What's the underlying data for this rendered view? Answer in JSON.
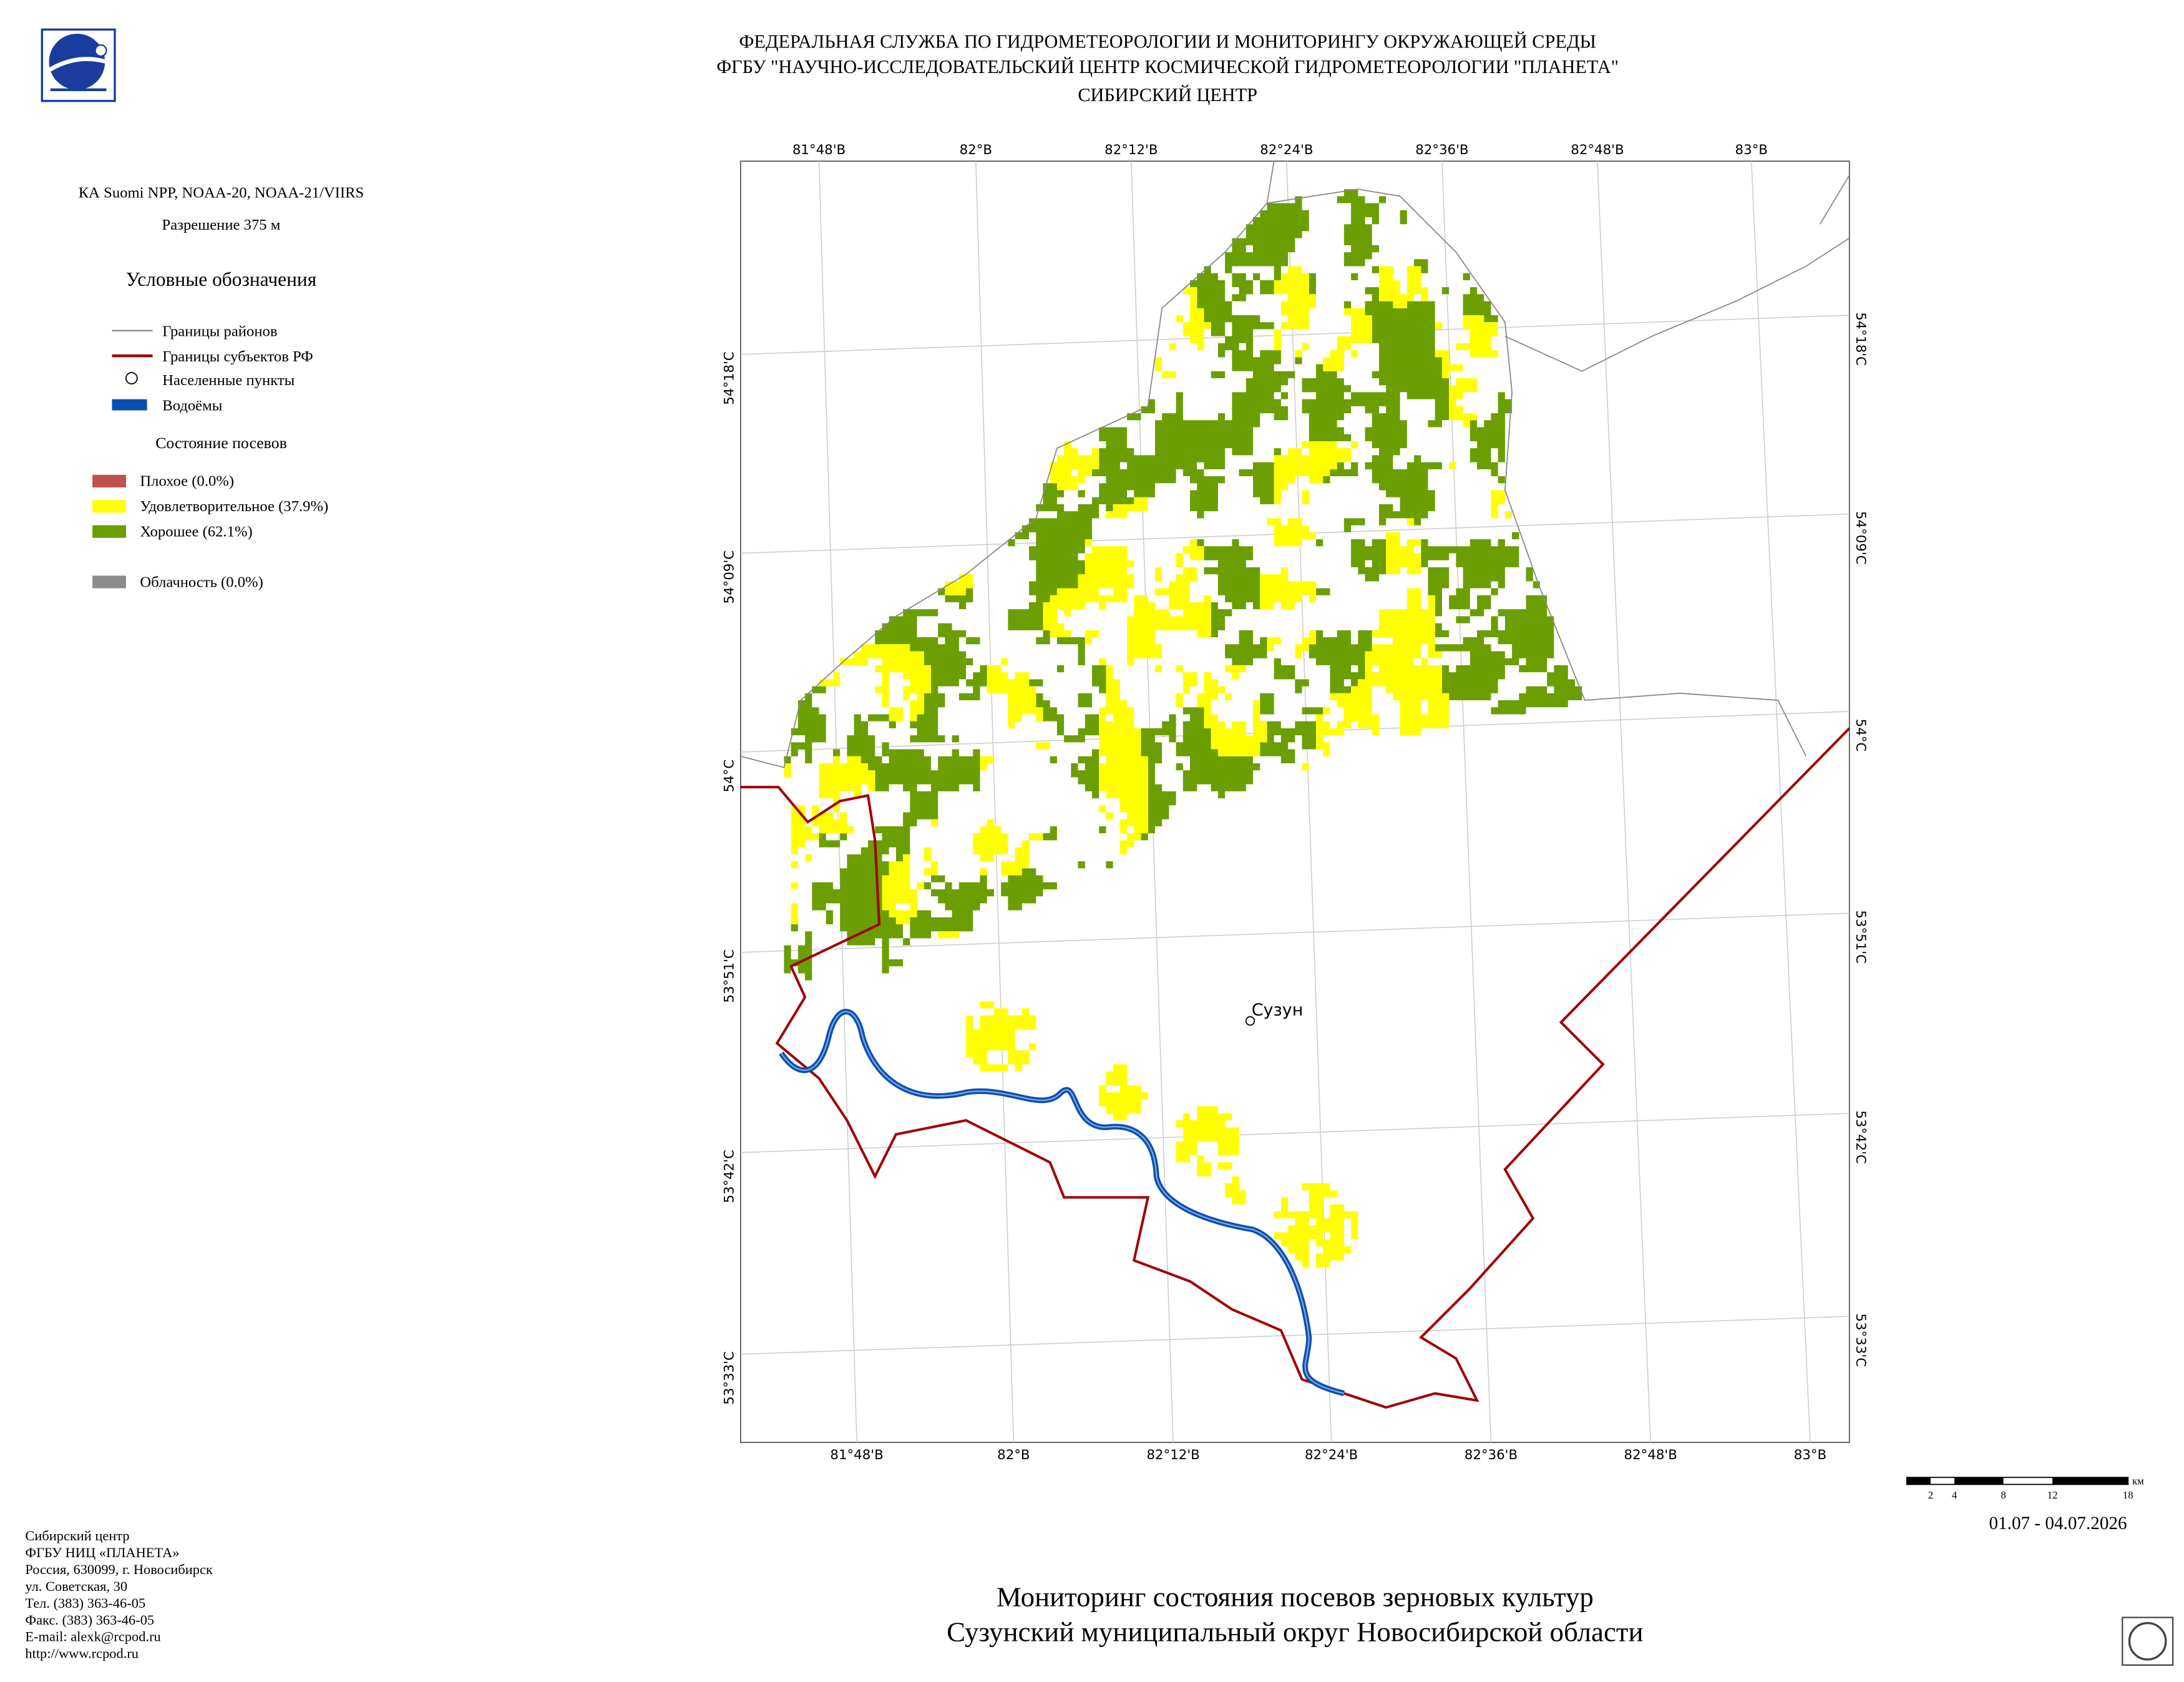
{
  "header": {
    "lines": [
      "ФЕДЕРАЛЬНАЯ СЛУЖБА ПО ГИДРОМЕТЕОРОЛОГИИ И МОНИТОРИНГУ ОКРУЖАЮЩЕЙ СРЕДЫ",
      "ФГБУ \"НАУЧНО-ИССЛЕДОВАТЕЛЬСКИЙ ЦЕНТР КОСМИЧЕСКОЙ ГИДРОМЕТЕОРОЛОГИИ \"ПЛАНЕТА\"",
      "СИБИРСКИЙ ЦЕНТР"
    ]
  },
  "sidebar": {
    "satellite": "КА Suomi NPP, NOAA-20, NOAA-21/VIIRS",
    "resolution": "Разрешение 375 м",
    "legend_title": "Условные обозначения",
    "legend": [
      "Границы районов",
      "Границы субъектов РФ",
      "Населенные пункты",
      "Водоёмы"
    ],
    "crops_title": "Состояние посевов",
    "crops": [
      "Плохое (0.0%)",
      "Удовлетворительное (37.9%)",
      "Хорошее (62.1%)"
    ],
    "cloud": "Облачность (0.0%)"
  },
  "map": {
    "top_lon_labels": [
      "81°48'В",
      "82°В",
      "82°12'В",
      "82°24'В",
      "82°36'В",
      "82°48'В",
      "83°В"
    ],
    "bottom_lon_labels": [
      "81°48'В",
      "82°В",
      "82°12'В",
      "82°24'В",
      "82°36'В",
      "82°48'В",
      "83°В"
    ],
    "left_lat_labels": [
      "54°18'С",
      "54°09'С",
      "54°С",
      "53°51'С",
      "53°42'С",
      "53°33'С"
    ],
    "right_lat_labels": [
      "54°18'С",
      "54°09'С",
      "54°С",
      "53°51'С",
      "53°42'С",
      "53°33'С"
    ],
    "settlement": "Сузун"
  },
  "scale": {
    "labels": [
      2,
      4,
      8,
      12,
      18
    ],
    "unit": "км"
  },
  "date": "01.07 - 04.07.2026",
  "title": [
    "Мониторинг состояния посевов зерновых культур",
    "Сузунский муниципальный округ Новосибирской области"
  ],
  "footer": [
    "Сибирский центр",
    "ФГБУ НИЦ «ПЛАНЕТА»",
    "Россия, 630099, г. Новосибирск",
    "ул. Советская, 30",
    "Тел. (383) 363-46-05",
    "Факс. (383) 363-46-05",
    "E-mail: alexk@rcpod.ru",
    "http://www.rcpod.ru"
  ]
}
